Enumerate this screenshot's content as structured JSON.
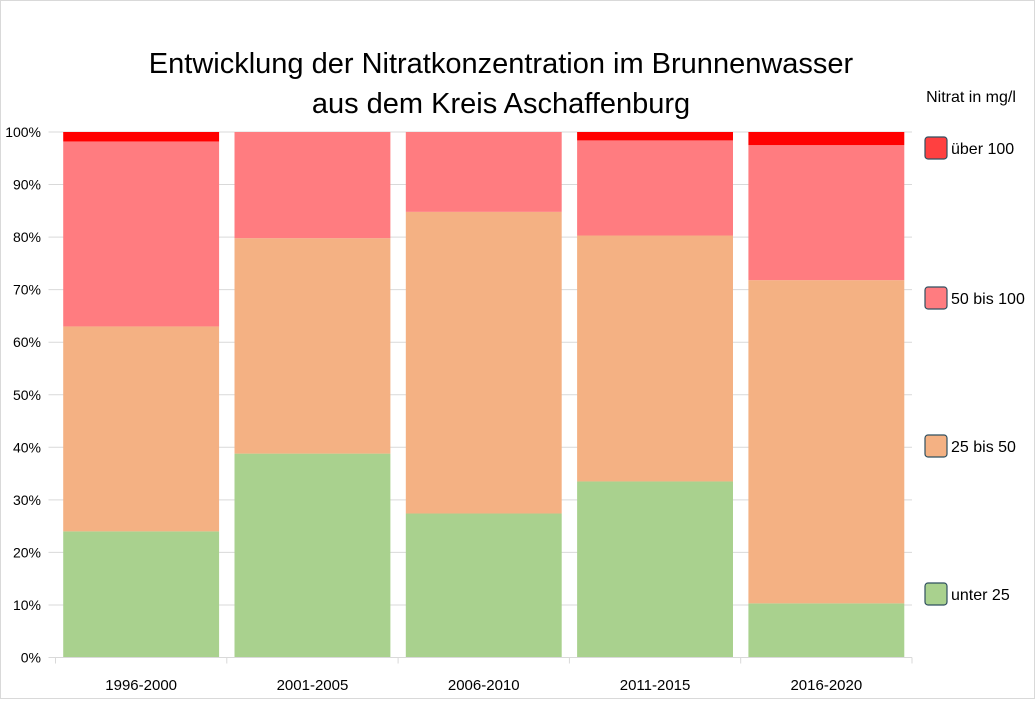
{
  "chart_data": {
    "type": "bar",
    "stacked": true,
    "percent_stacked": true,
    "title": "Entwicklung der Nitratkonzentration im Brunnenwasser",
    "subtitle": "aus dem Kreis Aschaffenburg",
    "legend_title": "Nitrat in mg/l",
    "legend_placement": "right",
    "xlabel": "",
    "ylabel": "",
    "ylim": [
      0,
      100
    ],
    "yticks": [
      "0%",
      "10%",
      "20%",
      "30%",
      "40%",
      "50%",
      "60%",
      "70%",
      "80%",
      "90%",
      "100%"
    ],
    "grid": true,
    "categories": [
      "1996-2000",
      "2001-2005",
      "2006-2010",
      "2011-2015",
      "2016-2020"
    ],
    "series": [
      {
        "name": "unter 25",
        "color": "#a9d18e",
        "values": [
          24.0,
          38.8,
          27.4,
          33.5,
          10.3
        ]
      },
      {
        "name": "25 bis 50",
        "color": "#f4b183",
        "values": [
          39.0,
          41.0,
          57.4,
          46.8,
          61.5
        ]
      },
      {
        "name": "50 bis 100",
        "color": "#ff7c80",
        "values": [
          35.2,
          20.2,
          15.2,
          18.1,
          25.7
        ]
      },
      {
        "name": "über 100",
        "color": "#ff0000",
        "legend_color": "#ff4040",
        "values": [
          1.8,
          0,
          0,
          1.6,
          2.5
        ]
      }
    ]
  }
}
